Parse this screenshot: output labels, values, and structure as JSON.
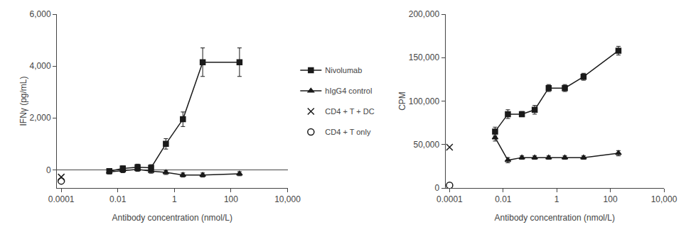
{
  "chart_data": [
    {
      "type": "line",
      "xlabel": "Antibody concentration (nmol/L)",
      "ylabel": "IFNγ (pg/mL)",
      "log": "x",
      "grid": false,
      "legend": "right",
      "xlim": [
        7e-05,
        10000
      ],
      "xticks": [
        0.0001,
        0.01,
        1,
        100,
        {
          "value": 10000,
          "label": "10,000"
        }
      ],
      "ylim": [
        -700,
        6000
      ],
      "yticks": [
        0,
        {
          "value": 2000,
          "label": "2,000"
        },
        {
          "value": 4000,
          "label": "4,000"
        },
        {
          "value": 6000,
          "label": "6,000"
        }
      ],
      "series": [
        {
          "name": "Nivolumab",
          "type": "line",
          "marker": "square",
          "line_style": "solid",
          "color": "#1a1a1a",
          "x": [
            0.005,
            0.015,
            0.05,
            0.15,
            0.5,
            2,
            10,
            200
          ],
          "values": [
            -50,
            50,
            100,
            80,
            1000,
            1950,
            4150,
            4150
          ],
          "errors": [
            80,
            100,
            120,
            120,
            200,
            280,
            550,
            550
          ]
        },
        {
          "name": "hIgG4 control",
          "type": "line",
          "marker": "triangle",
          "line_style": "solid",
          "color": "#1a1a1a",
          "x": [
            0.005,
            0.015,
            0.05,
            0.15,
            0.5,
            2,
            10,
            200
          ],
          "values": [
            -80,
            -30,
            20,
            -50,
            -100,
            -200,
            -200,
            -150
          ],
          "errors": [
            80,
            80,
            80,
            80,
            80,
            80,
            80,
            80
          ]
        },
        {
          "name": "CD4 + T + DC",
          "type": "scatter",
          "marker": "x",
          "line_style": "none",
          "color": "#1a1a1a",
          "x": [
            0.0001
          ],
          "values": [
            -280
          ]
        },
        {
          "name": "CD4 + T only",
          "type": "scatter",
          "marker": "circle",
          "line_style": "none",
          "color": "#1a1a1a",
          "x": [
            0.0001
          ],
          "values": [
            -430
          ]
        }
      ]
    },
    {
      "type": "line",
      "xlabel": "Antibody concentration (nmol/L)",
      "ylabel": "CPM",
      "log": "x",
      "grid": false,
      "xlim": [
        7e-05,
        10000
      ],
      "xticks": [
        0.0001,
        0.01,
        1,
        100,
        {
          "value": 10000,
          "label": "10,000"
        }
      ],
      "ylim": [
        0,
        200000
      ],
      "yticks": [
        0,
        {
          "value": 50000,
          "label": "50,000"
        },
        {
          "value": 100000,
          "label": "100,000"
        },
        {
          "value": 150000,
          "label": "150,000"
        },
        {
          "value": 200000,
          "label": "200,000"
        }
      ],
      "series": [
        {
          "name": "Nivolumab",
          "type": "line",
          "marker": "square",
          "line_style": "solid",
          "color": "#1a1a1a",
          "x": [
            0.005,
            0.015,
            0.05,
            0.15,
            0.5,
            2,
            10,
            200
          ],
          "values": [
            65000,
            85000,
            85000,
            90000,
            115000,
            115000,
            128000,
            158000
          ],
          "errors": [
            5000,
            5000,
            3000,
            5000,
            4000,
            4000,
            4000,
            5000
          ]
        },
        {
          "name": "hIgG4 control",
          "type": "line",
          "marker": "triangle",
          "line_style": "solid",
          "color": "#1a1a1a",
          "x": [
            0.005,
            0.015,
            0.05,
            0.15,
            0.5,
            2,
            10,
            200
          ],
          "values": [
            58000,
            32000,
            35000,
            35000,
            35000,
            35000,
            35000,
            40000
          ],
          "errors": [
            4000,
            3000,
            2000,
            2000,
            2000,
            2000,
            2000,
            3000
          ]
        },
        {
          "name": "CD4 + T + DC",
          "type": "scatter",
          "marker": "x",
          "line_style": "none",
          "color": "#1a1a1a",
          "x": [
            0.0001
          ],
          "values": [
            47000
          ]
        },
        {
          "name": "CD4 + T only",
          "type": "scatter",
          "marker": "circle",
          "line_style": "none",
          "color": "#1a1a1a",
          "x": [
            0.0001
          ],
          "values": [
            3000
          ]
        }
      ]
    }
  ]
}
